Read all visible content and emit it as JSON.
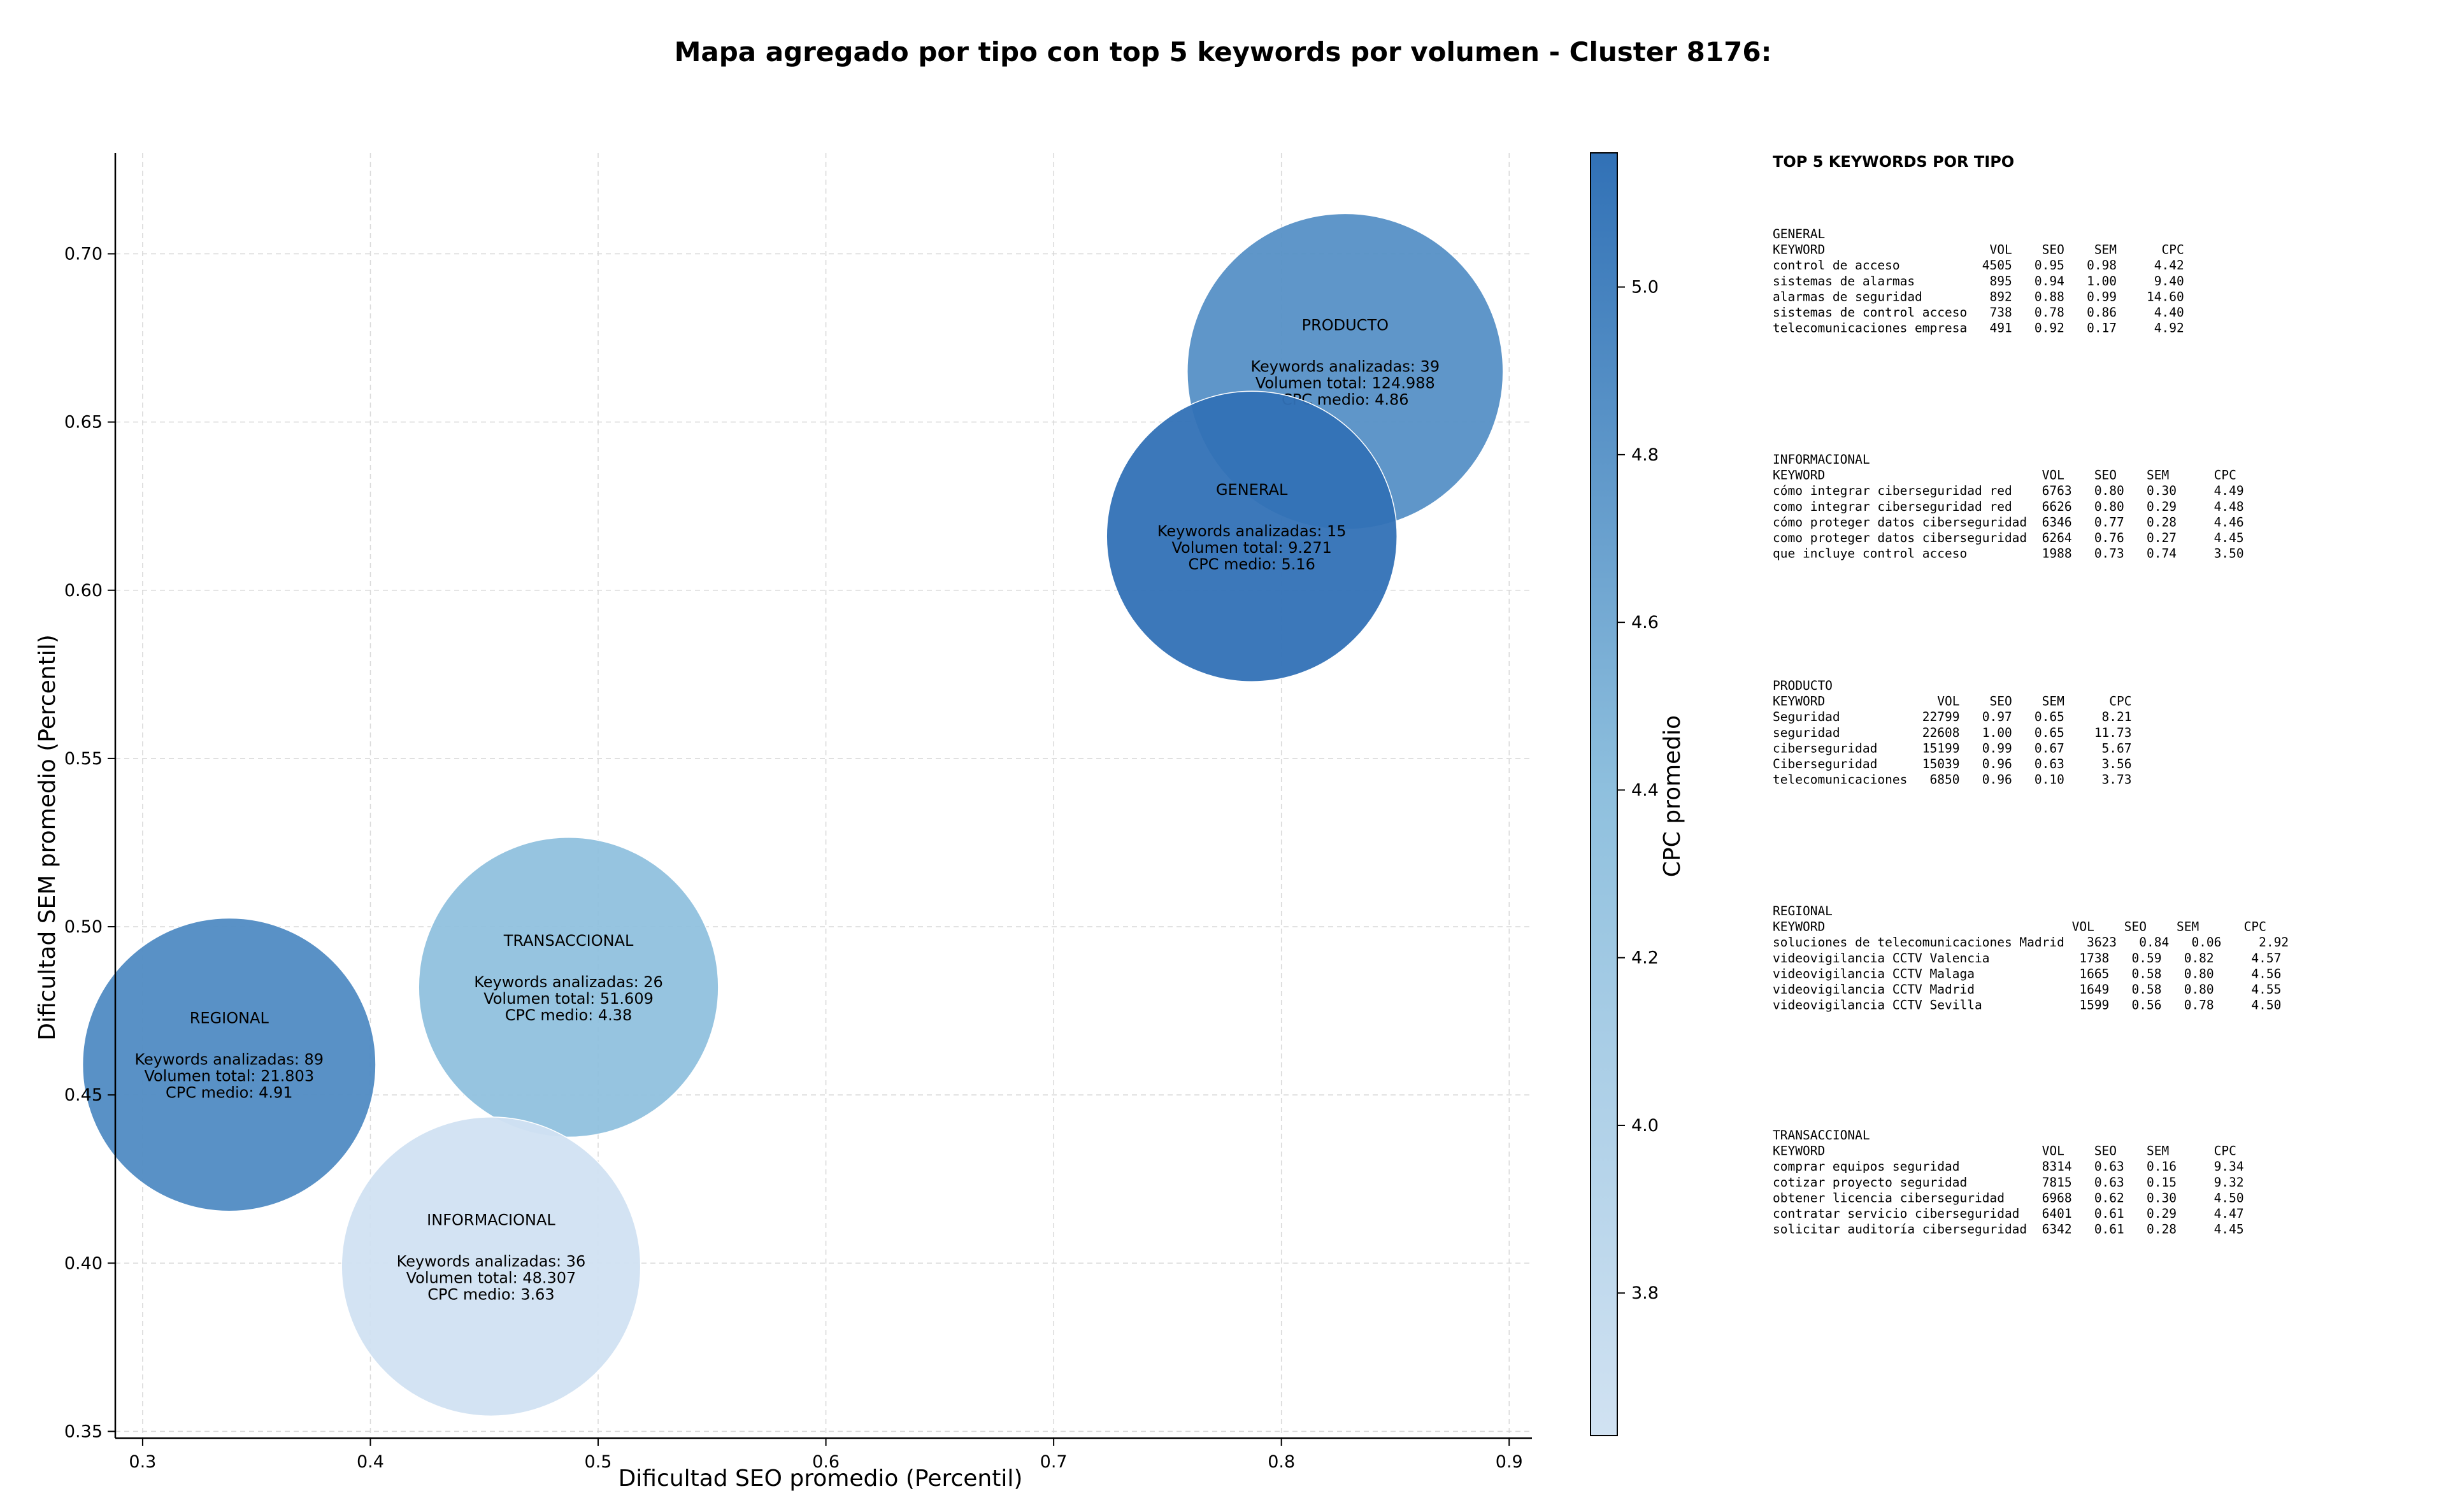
{
  "chart_data": {
    "type": "bubble",
    "title": "Mapa agregado por tipo con top 5 keywords por volumen - Cluster 8176:",
    "xlabel": "Dificultad SEO promedio (Percentil)",
    "ylabel": "Dificultad SEM promedio (Percentil)",
    "xlim": [
      0.288,
      0.91
    ],
    "ylim": [
      0.348,
      0.73
    ],
    "xticks": [
      "0.3",
      "0.4",
      "0.5",
      "0.6",
      "0.7",
      "0.8",
      "0.9"
    ],
    "yticks": [
      "0.35",
      "0.40",
      "0.45",
      "0.50",
      "0.55",
      "0.60",
      "0.65",
      "0.70"
    ],
    "grid": true,
    "colorbar": {
      "label": "CPC promedio",
      "min": 3.63,
      "max": 5.16,
      "ticks": [
        "3.8",
        "4.0",
        "4.2",
        "4.4",
        "4.6",
        "4.8",
        "5.0"
      ],
      "color_low": "#d1e2f2",
      "color_high": "#3171b6"
    },
    "points": [
      {
        "label": "PRODUCTO",
        "x": 0.828,
        "y": 0.665,
        "keywords_text": "Keywords analizadas: 39",
        "volume_text": "Volumen total: 124.988",
        "cpc_text": "CPC medio: 4.86",
        "volume": 124988,
        "cpc": 4.86
      },
      {
        "label": "GENERAL",
        "x": 0.787,
        "y": 0.616,
        "keywords_text": "Keywords analizadas: 15",
        "volume_text": "Volumen total: 9.271",
        "cpc_text": "CPC medio: 5.16",
        "volume": 9271,
        "cpc": 5.16
      },
      {
        "label": "TRANSACCIONAL",
        "x": 0.487,
        "y": 0.482,
        "keywords_text": "Keywords analizadas: 26",
        "volume_text": "Volumen total: 51.609",
        "cpc_text": "CPC medio: 4.38",
        "volume": 51609,
        "cpc": 4.38
      },
      {
        "label": "REGIONAL",
        "x": 0.338,
        "y": 0.459,
        "keywords_text": "Keywords analizadas: 89",
        "volume_text": "Volumen total: 21.803",
        "cpc_text": "CPC medio: 4.91",
        "volume": 21803,
        "cpc": 4.91
      },
      {
        "label": "INFORMACIONAL",
        "x": 0.453,
        "y": 0.399,
        "keywords_text": "Keywords analizadas: 36",
        "volume_text": "Volumen total: 48.307",
        "cpc_text": "CPC medio: 3.63",
        "volume": 48307,
        "cpc": 3.63
      }
    ]
  },
  "side_panel": {
    "title": "TOP 5 KEYWORDS POR TIPO",
    "blocks": [
      {
        "name": "GENERAL",
        "lines": [
          "KEYWORD                      VOL    SEO    SEM      CPC",
          "control de acceso           4505   0.95   0.98     4.42",
          "sistemas de alarmas          895   0.94   1.00     9.40",
          "alarmas de seguridad         892   0.88   0.99    14.60",
          "sistemas de control acceso   738   0.78   0.86     4.40",
          "telecomunicaciones empresa   491   0.92   0.17     4.92"
        ]
      },
      {
        "name": "INFORMACIONAL",
        "lines": [
          "KEYWORD                             VOL    SEO    SEM      CPC",
          "cómo integrar ciberseguridad red    6763   0.80   0.30     4.49",
          "como integrar ciberseguridad red    6626   0.80   0.29     4.48",
          "cómo proteger datos ciberseguridad  6346   0.77   0.28     4.46",
          "como proteger datos ciberseguridad  6264   0.76   0.27     4.45",
          "que incluye control acceso          1988   0.73   0.74     3.50"
        ]
      },
      {
        "name": "PRODUCTO",
        "lines": [
          "KEYWORD               VOL    SEO    SEM      CPC",
          "Seguridad           22799   0.97   0.65     8.21",
          "seguridad           22608   1.00   0.65    11.73",
          "ciberseguridad      15199   0.99   0.67     5.67",
          "Ciberseguridad      15039   0.96   0.63     3.56",
          "telecomunicaciones   6850   0.96   0.10     3.73"
        ]
      },
      {
        "name": "REGIONAL",
        "lines": [
          "KEYWORD                                 VOL    SEO    SEM      CPC",
          "soluciones de telecomunicaciones Madrid   3623   0.84   0.06     2.92",
          "videovigilancia CCTV Valencia            1738   0.59   0.82     4.57",
          "videovigilancia CCTV Malaga              1665   0.58   0.80     4.56",
          "videovigilancia CCTV Madrid              1649   0.58   0.80     4.55",
          "videovigilancia CCTV Sevilla             1599   0.56   0.78     4.50"
        ]
      },
      {
        "name": "TRANSACCIONAL",
        "lines": [
          "KEYWORD                             VOL    SEO    SEM      CPC",
          "comprar equipos seguridad           8314   0.63   0.16     9.34",
          "cotizar proyecto seguridad          7815   0.63   0.15     9.32",
          "obtener licencia ciberseguridad     6968   0.62   0.30     4.50",
          "contratar servicio ciberseguridad   6401   0.61   0.29     4.47",
          "solicitar auditoría ciberseguridad  6342   0.61   0.28     4.45"
        ]
      }
    ]
  }
}
